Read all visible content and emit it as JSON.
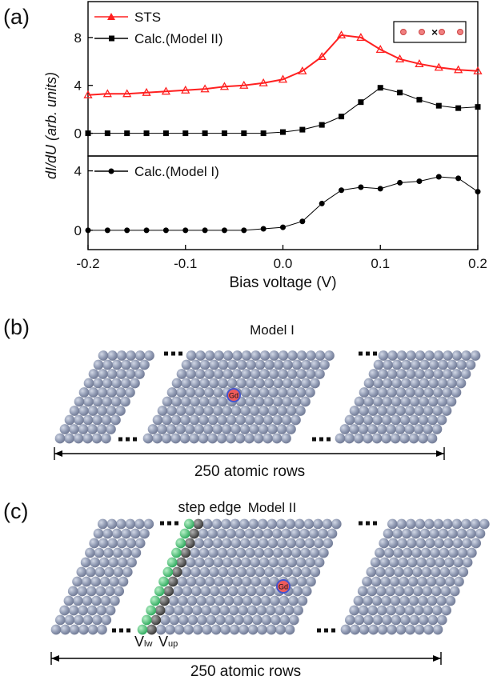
{
  "chart_data": [
    {
      "type": "line",
      "x": [
        -0.2,
        -0.18,
        -0.16,
        -0.14,
        -0.12,
        -0.1,
        -0.08,
        -0.06,
        -0.04,
        -0.02,
        0,
        0.02,
        0.04,
        0.06,
        0.08,
        0.1,
        0.12,
        0.14,
        0.16,
        0.18,
        0.2
      ],
      "series": [
        {
          "name": "STS",
          "color": "#ff2020",
          "marker": "triangle",
          "values": [
            3.2,
            3.3,
            3.3,
            3.4,
            3.5,
            3.6,
            3.7,
            3.9,
            4.0,
            4.2,
            4.5,
            5.2,
            6.4,
            8.2,
            8.0,
            7.0,
            6.2,
            5.8,
            5.5,
            5.3,
            5.2
          ]
        },
        {
          "name": "Calc.(Model II)",
          "color": "#000000",
          "marker": "square",
          "values": [
            0,
            0,
            0,
            0,
            0,
            0,
            0,
            0,
            0,
            0,
            0.1,
            0.3,
            0.7,
            1.4,
            2.6,
            3.8,
            3.4,
            2.8,
            2.3,
            2.1,
            2.2
          ]
        }
      ],
      "xlim": [
        -0.2,
        0.2
      ],
      "ylim": [
        -1.9,
        11
      ],
      "yticks": [
        0,
        4,
        8
      ],
      "y_label": "dI/dU (arb. units)"
    },
    {
      "type": "line",
      "x": [
        -0.2,
        -0.18,
        -0.16,
        -0.14,
        -0.12,
        -0.1,
        -0.08,
        -0.06,
        -0.04,
        -0.02,
        0,
        0.02,
        0.04,
        0.06,
        0.08,
        0.1,
        0.12,
        0.14,
        0.16,
        0.18,
        0.2
      ],
      "series": [
        {
          "name": "Calc.(Model I)",
          "color": "#000000",
          "marker": "circle",
          "values": [
            0,
            0,
            0,
            0,
            0,
            0,
            0,
            0,
            0,
            0.1,
            0.2,
            0.6,
            1.8,
            2.7,
            2.9,
            2.8,
            3.2,
            3.3,
            3.6,
            3.5,
            2.6
          ]
        }
      ],
      "xlim": [
        -0.2,
        0.2
      ],
      "ylim": [
        -1.3,
        5
      ],
      "yticks": [
        0,
        4
      ],
      "xticks": [
        -0.2,
        -0.1,
        {
          "value": 0,
          "label": "0.0"
        },
        0.1,
        0.2
      ],
      "x_label": "Bias voltage (V)"
    }
  ],
  "panel_a": {
    "label": "(a)"
  },
  "panel_b": {
    "label": "(b)",
    "title": "Model I",
    "atom": "Gd",
    "span": "250 atomic rows"
  },
  "panel_c": {
    "label": "(c)",
    "title": "Model II",
    "atom": "Gd",
    "step": "step edge",
    "v_lw": {
      "symbol": "V",
      "sub": "lw"
    },
    "v_up": {
      "symbol": "V",
      "sub": "up"
    },
    "span": "250 atomic rows"
  }
}
